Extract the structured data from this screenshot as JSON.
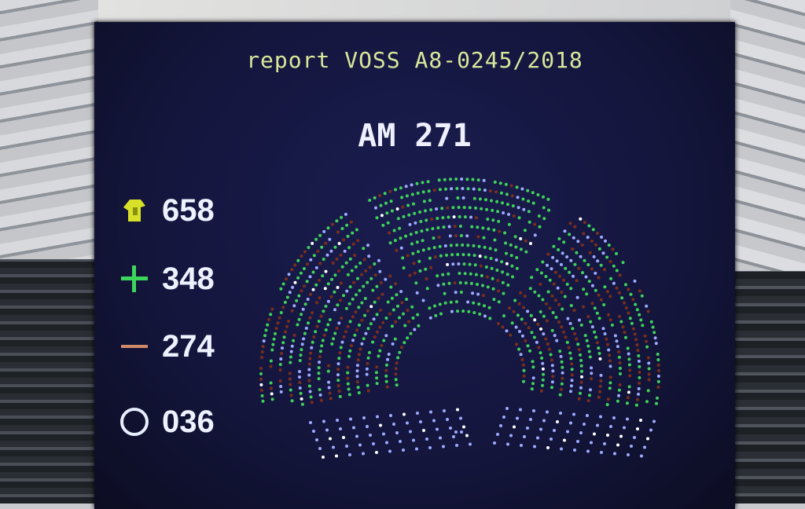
{
  "title": "report VOSS A8-0245/2018",
  "amendment": "AM 271",
  "results": [
    {
      "key": "present",
      "icon": "voter-hand-icon",
      "value": "658",
      "color": "#d8e02a"
    },
    {
      "key": "for",
      "icon": "plus-icon",
      "value": "348",
      "color": "#3cd45a"
    },
    {
      "key": "against",
      "icon": "minus-icon",
      "value": "274",
      "color": "#d08a6a"
    },
    {
      "key": "abstention",
      "icon": "circle-icon",
      "value": "036",
      "color": "#e8eeff"
    }
  ],
  "seat_colors": {
    "for": "#3fd25a",
    "against": "#7a2e1c",
    "abstention": "#9eaaff",
    "absent": "#ffffff"
  }
}
